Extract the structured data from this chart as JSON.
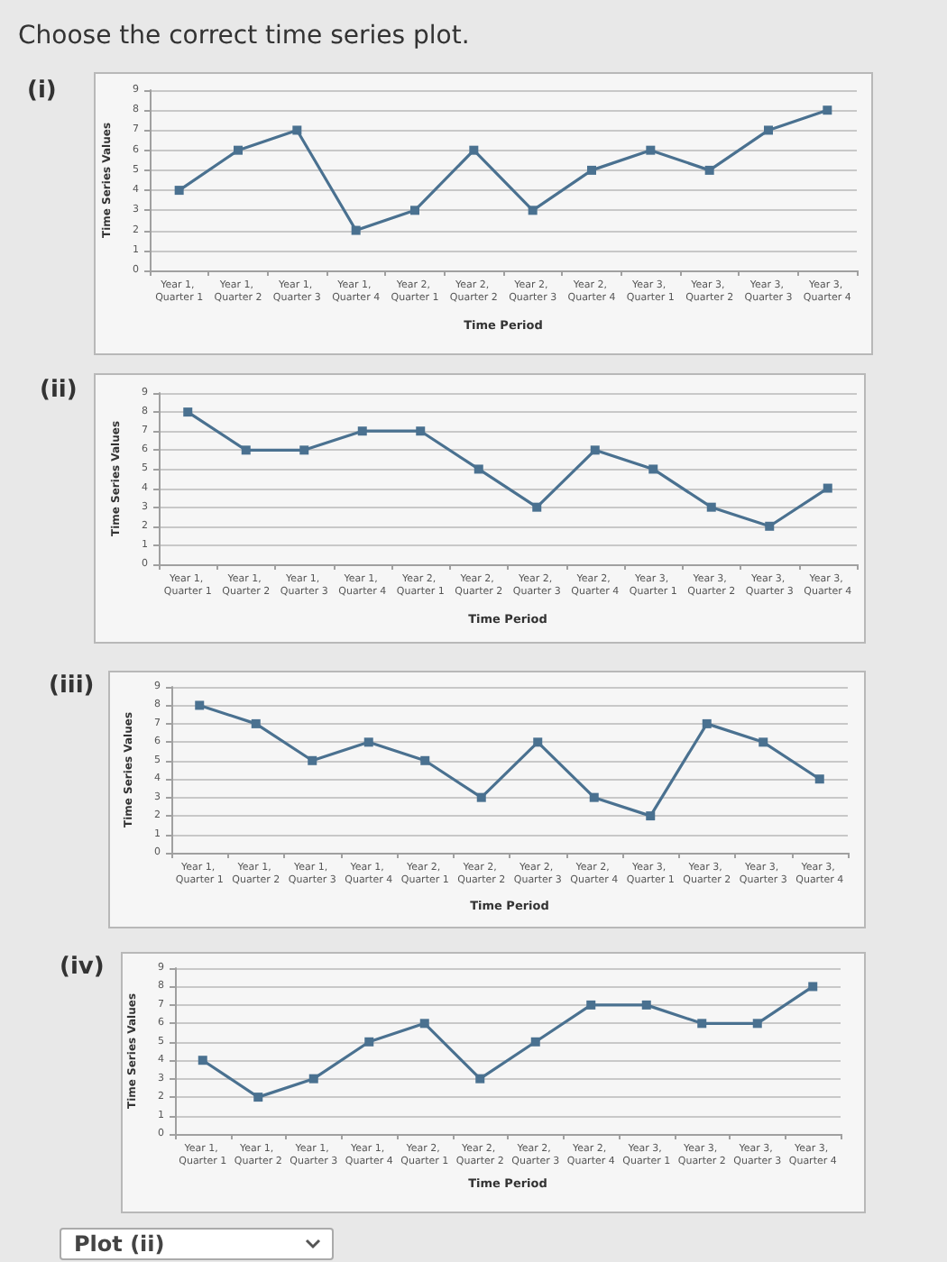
{
  "chart_data": [
    {
      "type": "other",
      "title": "Choose the correct time series plot."
    },
    {
      "type": "line",
      "title": "(i)",
      "xlabel": "Time Period",
      "ylabel": "Time Series Values",
      "categories": [
        "Year 1, Quarter 1",
        "Year 1, Quarter 2",
        "Year 1, Quarter 3",
        "Year 1, Quarter 4",
        "Year 2, Quarter 1",
        "Year 2, Quarter 2",
        "Year 2, Quarter 3",
        "Year 2, Quarter 4",
        "Year 3, Quarter 1",
        "Year 3, Quarter 2",
        "Year 3, Quarter 3",
        "Year 3, Quarter 4"
      ],
      "values": [
        4,
        6,
        7,
        2,
        3,
        6,
        3,
        5,
        6,
        5,
        7,
        8
      ],
      "color": "#4a7190",
      "ylim": [
        0,
        9
      ],
      "yticks": [
        0,
        1,
        2,
        3,
        4,
        5,
        6,
        7,
        8,
        9
      ],
      "grid": "y",
      "marker": "square",
      "line_style": "solid"
    },
    {
      "type": "line",
      "title": "(ii)",
      "xlabel": "Time Period",
      "ylabel": "Time Series Values",
      "categories": [
        "Year 1, Quarter 1",
        "Year 1, Quarter 2",
        "Year 1, Quarter 3",
        "Year 1, Quarter 4",
        "Year 2, Quarter 1",
        "Year 2, Quarter 2",
        "Year 2, Quarter 3",
        "Year 2, Quarter 4",
        "Year 3, Quarter 1",
        "Year 3, Quarter 2",
        "Year 3, Quarter 3",
        "Year 3, Quarter 4"
      ],
      "values": [
        8,
        6,
        6,
        7,
        7,
        5,
        3,
        6,
        5,
        3,
        2,
        4
      ],
      "color": "#4a7190",
      "ylim": [
        0,
        9
      ],
      "yticks": [
        0,
        1,
        2,
        3,
        4,
        5,
        6,
        7,
        8,
        9
      ],
      "grid": "y",
      "marker": "square",
      "line_style": "solid"
    },
    {
      "type": "line",
      "title": "(iii)",
      "xlabel": "Time Period",
      "ylabel": "Time Series Values",
      "categories": [
        "Year 1, Quarter 1",
        "Year 1, Quarter 2",
        "Year 1, Quarter 3",
        "Year 1, Quarter 4",
        "Year 2, Quarter 1",
        "Year 2, Quarter 2",
        "Year 2, Quarter 3",
        "Year 2, Quarter 4",
        "Year 3, Quarter 1",
        "Year 3, Quarter 2",
        "Year 3, Quarter 3",
        "Year 3, Quarter 4"
      ],
      "values": [
        8,
        7,
        5,
        6,
        5,
        3,
        6,
        3,
        2,
        7,
        6,
        4
      ],
      "color": "#4a7190",
      "ylim": [
        0,
        9
      ],
      "yticks": [
        0,
        1,
        2,
        3,
        4,
        5,
        6,
        7,
        8,
        9
      ],
      "grid": "y",
      "marker": "square",
      "line_style": "solid"
    },
    {
      "type": "line",
      "title": "(iv)",
      "xlabel": "Time Period",
      "ylabel": "Time Series Values",
      "categories": [
        "Year 1, Quarter 1",
        "Year 1, Quarter 2",
        "Year 1, Quarter 3",
        "Year 1, Quarter 4",
        "Year 2, Quarter 1",
        "Year 2, Quarter 2",
        "Year 2, Quarter 3",
        "Year 2, Quarter 4",
        "Year 3, Quarter 1",
        "Year 3, Quarter 2",
        "Year 3, Quarter 3",
        "Year 3, Quarter 4"
      ],
      "values": [
        4,
        2,
        3,
        5,
        6,
        3,
        5,
        7,
        7,
        6,
        6,
        8
      ],
      "color": "#4a7190",
      "ylim": [
        0,
        9
      ],
      "yticks": [
        0,
        1,
        2,
        3,
        4,
        5,
        6,
        7,
        8,
        9
      ],
      "grid": "y",
      "marker": "square",
      "line_style": "solid"
    },
    {
      "type": "other",
      "annotations": [
        "Plot (ii)"
      ]
    }
  ]
}
